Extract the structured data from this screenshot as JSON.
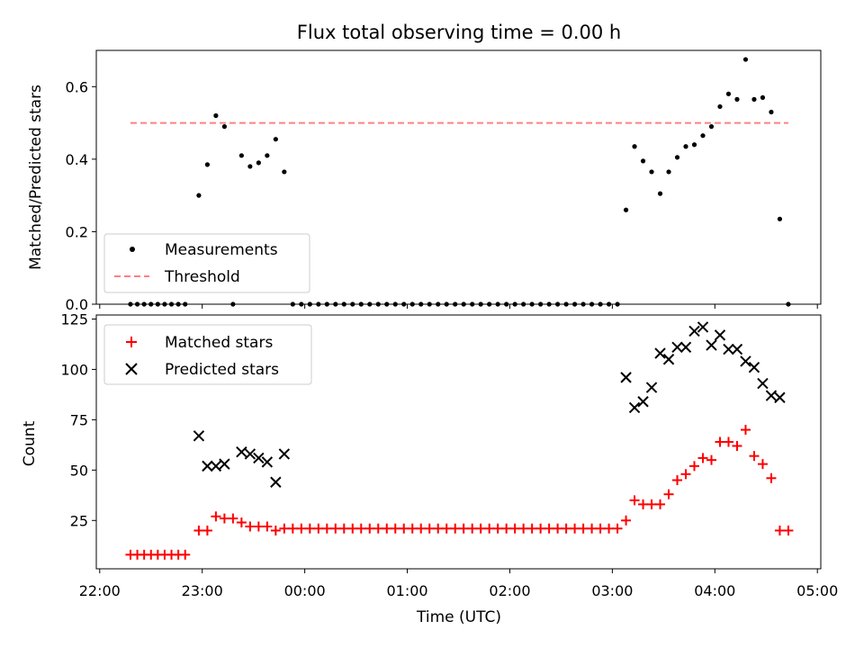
{
  "title": "Flux total observing time = 0.00 h",
  "colors": {
    "measurement": "#000000",
    "threshold": "#ff8080",
    "matched": "#ff0000",
    "predicted": "#000000"
  },
  "chart_data": [
    {
      "type": "scatter",
      "ylabel": "Matched/Predicted stars",
      "xlim": [
        "2023-01-01 21:58",
        "2023-01-02 05:02"
      ],
      "ylim": [
        0,
        0.7
      ],
      "yticks": [
        "0.0",
        "0.2",
        "0.4",
        "0.6"
      ],
      "legend": {
        "placement": "lower-left",
        "entries": [
          "Measurements",
          "Threshold"
        ]
      },
      "series": [
        {
          "name": "Measurements",
          "marker": "dot",
          "points": [
            [
              "22:18",
              0.0
            ],
            [
              "22:22",
              0.0
            ],
            [
              "22:26",
              0.0
            ],
            [
              "22:30",
              0.0
            ],
            [
              "22:34",
              0.0
            ],
            [
              "22:38",
              0.0
            ],
            [
              "22:42",
              0.0
            ],
            [
              "22:46",
              0.0
            ],
            [
              "22:50",
              0.0
            ],
            [
              "22:58",
              0.3
            ],
            [
              "23:03",
              0.385
            ],
            [
              "23:08",
              0.52
            ],
            [
              "23:13",
              0.49
            ],
            [
              "23:18",
              0.0
            ],
            [
              "23:23",
              0.41
            ],
            [
              "23:28",
              0.38
            ],
            [
              "23:33",
              0.39
            ],
            [
              "23:38",
              0.41
            ],
            [
              "23:43",
              0.455
            ],
            [
              "23:48",
              0.365
            ],
            [
              "23:53",
              0.0
            ],
            [
              "23:58",
              0.0
            ],
            [
              "00:03",
              0.0
            ],
            [
              "00:08",
              0.0
            ],
            [
              "00:13",
              0.0
            ],
            [
              "00:18",
              0.0
            ],
            [
              "00:23",
              0.0
            ],
            [
              "00:28",
              0.0
            ],
            [
              "00:33",
              0.0
            ],
            [
              "00:38",
              0.0
            ],
            [
              "00:43",
              0.0
            ],
            [
              "00:48",
              0.0
            ],
            [
              "00:53",
              0.0
            ],
            [
              "00:58",
              0.0
            ],
            [
              "01:03",
              0.0
            ],
            [
              "01:08",
              0.0
            ],
            [
              "01:13",
              0.0
            ],
            [
              "01:18",
              0.0
            ],
            [
              "01:23",
              0.0
            ],
            [
              "01:28",
              0.0
            ],
            [
              "01:33",
              0.0
            ],
            [
              "01:38",
              0.0
            ],
            [
              "01:43",
              0.0
            ],
            [
              "01:48",
              0.0
            ],
            [
              "01:53",
              0.0
            ],
            [
              "01:58",
              0.0
            ],
            [
              "02:03",
              0.0
            ],
            [
              "02:08",
              0.0
            ],
            [
              "02:13",
              0.0
            ],
            [
              "02:18",
              0.0
            ],
            [
              "02:23",
              0.0
            ],
            [
              "02:28",
              0.0
            ],
            [
              "02:33",
              0.0
            ],
            [
              "02:38",
              0.0
            ],
            [
              "02:43",
              0.0
            ],
            [
              "02:48",
              0.0
            ],
            [
              "02:53",
              0.0
            ],
            [
              "02:58",
              0.0
            ],
            [
              "03:03",
              0.0
            ],
            [
              "03:08",
              0.26
            ],
            [
              "03:13",
              0.435
            ],
            [
              "03:18",
              0.395
            ],
            [
              "03:23",
              0.365
            ],
            [
              "03:28",
              0.305
            ],
            [
              "03:33",
              0.365
            ],
            [
              "03:38",
              0.405
            ],
            [
              "03:43",
              0.435
            ],
            [
              "03:48",
              0.44
            ],
            [
              "03:53",
              0.465
            ],
            [
              "03:58",
              0.49
            ],
            [
              "04:03",
              0.545
            ],
            [
              "04:08",
              0.58
            ],
            [
              "04:13",
              0.565
            ],
            [
              "04:18",
              0.675
            ],
            [
              "04:23",
              0.565
            ],
            [
              "04:28",
              0.57
            ],
            [
              "04:33",
              0.53
            ],
            [
              "04:38",
              0.235
            ],
            [
              "04:43",
              0.0
            ]
          ]
        },
        {
          "name": "Threshold",
          "marker": "dashed-line",
          "points": [
            [
              "22:18",
              0.5
            ],
            [
              "04:43",
              0.5
            ]
          ]
        }
      ]
    },
    {
      "type": "scatter",
      "xlabel": "Time (UTC)",
      "ylabel": "Count",
      "xlim": [
        "2023-01-01 21:58",
        "2023-01-02 05:02"
      ],
      "ylim": [
        1,
        127
      ],
      "yticks": [
        "25",
        "50",
        "75",
        "100",
        "125"
      ],
      "xticks": [
        "22:00",
        "23:00",
        "00:00",
        "01:00",
        "02:00",
        "03:00",
        "04:00",
        "05:00"
      ],
      "legend": {
        "placement": "top-left",
        "entries": [
          "Matched stars",
          "Predicted stars"
        ]
      },
      "series": [
        {
          "name": "Matched stars",
          "marker": "plus",
          "points": [
            [
              "22:18",
              8
            ],
            [
              "22:22",
              8
            ],
            [
              "22:26",
              8
            ],
            [
              "22:30",
              8
            ],
            [
              "22:34",
              8
            ],
            [
              "22:38",
              8
            ],
            [
              "22:42",
              8
            ],
            [
              "22:46",
              8
            ],
            [
              "22:50",
              8
            ],
            [
              "22:58",
              20
            ],
            [
              "23:03",
              20
            ],
            [
              "23:08",
              27
            ],
            [
              "23:13",
              26
            ],
            [
              "23:18",
              26
            ],
            [
              "23:23",
              24
            ],
            [
              "23:28",
              22
            ],
            [
              "23:33",
              22
            ],
            [
              "23:38",
              22
            ],
            [
              "23:43",
              20
            ],
            [
              "23:48",
              21
            ],
            [
              "23:53",
              21
            ],
            [
              "23:58",
              21
            ],
            [
              "00:03",
              21
            ],
            [
              "00:08",
              21
            ],
            [
              "00:13",
              21
            ],
            [
              "00:18",
              21
            ],
            [
              "00:23",
              21
            ],
            [
              "00:28",
              21
            ],
            [
              "00:33",
              21
            ],
            [
              "00:38",
              21
            ],
            [
              "00:43",
              21
            ],
            [
              "00:48",
              21
            ],
            [
              "00:53",
              21
            ],
            [
              "00:58",
              21
            ],
            [
              "01:03",
              21
            ],
            [
              "01:08",
              21
            ],
            [
              "01:13",
              21
            ],
            [
              "01:18",
              21
            ],
            [
              "01:23",
              21
            ],
            [
              "01:28",
              21
            ],
            [
              "01:33",
              21
            ],
            [
              "01:38",
              21
            ],
            [
              "01:43",
              21
            ],
            [
              "01:48",
              21
            ],
            [
              "01:53",
              21
            ],
            [
              "01:58",
              21
            ],
            [
              "02:03",
              21
            ],
            [
              "02:08",
              21
            ],
            [
              "02:13",
              21
            ],
            [
              "02:18",
              21
            ],
            [
              "02:23",
              21
            ],
            [
              "02:28",
              21
            ],
            [
              "02:33",
              21
            ],
            [
              "02:38",
              21
            ],
            [
              "02:43",
              21
            ],
            [
              "02:48",
              21
            ],
            [
              "02:53",
              21
            ],
            [
              "02:58",
              21
            ],
            [
              "03:03",
              21
            ],
            [
              "03:08",
              25
            ],
            [
              "03:13",
              35
            ],
            [
              "03:18",
              33
            ],
            [
              "03:23",
              33
            ],
            [
              "03:28",
              33
            ],
            [
              "03:33",
              38
            ],
            [
              "03:38",
              45
            ],
            [
              "03:43",
              48
            ],
            [
              "03:48",
              52
            ],
            [
              "03:53",
              56
            ],
            [
              "03:58",
              55
            ],
            [
              "04:03",
              64
            ],
            [
              "04:08",
              64
            ],
            [
              "04:13",
              62
            ],
            [
              "04:18",
              70
            ],
            [
              "04:23",
              57
            ],
            [
              "04:28",
              53
            ],
            [
              "04:33",
              46
            ],
            [
              "04:38",
              20
            ],
            [
              "04:43",
              20
            ]
          ]
        },
        {
          "name": "Predicted stars",
          "marker": "x",
          "points": [
            [
              "22:58",
              67
            ],
            [
              "23:03",
              52
            ],
            [
              "23:08",
              52
            ],
            [
              "23:13",
              53
            ],
            [
              "23:23",
              59
            ],
            [
              "23:28",
              58
            ],
            [
              "23:33",
              56
            ],
            [
              "23:38",
              54
            ],
            [
              "23:43",
              44
            ],
            [
              "23:48",
              58
            ],
            [
              "03:08",
              96
            ],
            [
              "03:13",
              81
            ],
            [
              "03:18",
              84
            ],
            [
              "03:23",
              91
            ],
            [
              "03:28",
              108
            ],
            [
              "03:33",
              105
            ],
            [
              "03:38",
              111
            ],
            [
              "03:43",
              111
            ],
            [
              "03:48",
              119
            ],
            [
              "03:53",
              121
            ],
            [
              "03:58",
              112
            ],
            [
              "04:03",
              117
            ],
            [
              "04:08",
              110
            ],
            [
              "04:13",
              110
            ],
            [
              "04:18",
              104
            ],
            [
              "04:23",
              101
            ],
            [
              "04:28",
              93
            ],
            [
              "04:33",
              87
            ],
            [
              "04:38",
              86
            ]
          ]
        }
      ]
    }
  ]
}
